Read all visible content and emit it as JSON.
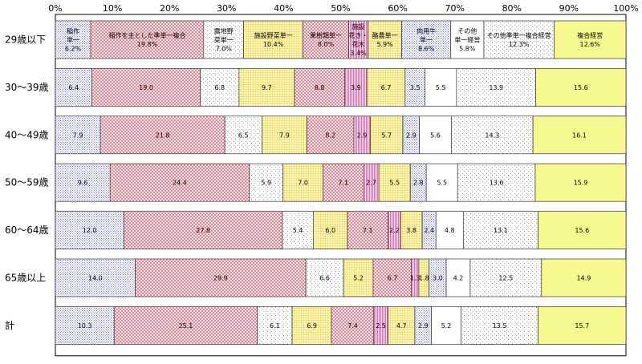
{
  "chart_data": {
    "type": "bar",
    "orientation": "horizontal",
    "stacked": true,
    "percent": true,
    "x_ticks": [
      "0%",
      "10%",
      "20%",
      "30%",
      "40%",
      "50%",
      "60%",
      "70%",
      "80%",
      "90%",
      "100%"
    ],
    "xlim": [
      0,
      100
    ],
    "categories": [
      "29歳以下",
      "30～39歳",
      "40～49歳",
      "50～59歳",
      "60～64歳",
      "65歳以上",
      "計"
    ],
    "series": [
      {
        "name": "稲作単一",
        "label_lines": [
          "稲作",
          "単一"
        ],
        "pattern": "dots",
        "color": "#c8c8ee",
        "values": [
          6.2,
          6.4,
          7.9,
          9.6,
          12.0,
          14.0,
          10.3
        ]
      },
      {
        "name": "稲作を主とした準単一複合",
        "label_lines": [
          "稲作を主とした準単一複合"
        ],
        "pattern": "check",
        "color": "#f0a0a8",
        "values": [
          19.8,
          19.0,
          21.8,
          24.4,
          27.8,
          29.9,
          25.1
        ]
      },
      {
        "name": "露地野菜単一",
        "label_lines": [
          "露地野",
          "菜単一"
        ],
        "pattern": "speck",
        "color": "#e8d8c8",
        "values": [
          7.0,
          6.8,
          6.5,
          5.9,
          5.4,
          6.6,
          6.1
        ]
      },
      {
        "name": "施設野菜単一",
        "label_lines": [
          "施設野菜単一"
        ],
        "pattern": "grid",
        "color": "#f4e060",
        "values": [
          10.4,
          9.7,
          7.9,
          7.0,
          6.0,
          5.2,
          6.9
        ]
      },
      {
        "name": "果樹類単一",
        "label_lines": [
          "果樹類単一"
        ],
        "pattern": "check",
        "color": "#e06878",
        "values": [
          8.0,
          8.8,
          8.2,
          7.1,
          7.1,
          6.7,
          7.4
        ]
      },
      {
        "name": "施設花き・花木",
        "label_lines": [
          "施設",
          "花き・",
          "花木"
        ],
        "pattern": "vlines",
        "color": "#f098c8",
        "values": [
          3.4,
          3.9,
          2.9,
          2.7,
          2.2,
          1.3,
          2.5
        ]
      },
      {
        "name": "酪農単一",
        "label_lines": [
          "酪農単一"
        ],
        "pattern": "grid",
        "color": "#a8d080",
        "values": [
          5.9,
          6.7,
          5.7,
          5.5,
          3.8,
          1.8,
          4.7
        ]
      },
      {
        "name": "肉用牛単一",
        "label_lines": [
          "肉用牛",
          "単一"
        ],
        "pattern": "dots",
        "color": "#88d8a0",
        "values": [
          8.6,
          3.5,
          2.9,
          2.8,
          2.4,
          3.0,
          2.9
        ]
      },
      {
        "name": "その他単一経営",
        "label_lines": [
          "その他",
          "単一経営"
        ],
        "pattern": "none",
        "color": "#ffffff",
        "values": [
          5.8,
          5.5,
          5.6,
          5.5,
          4.8,
          4.2,
          5.2
        ]
      },
      {
        "name": "その他準単一複合経営",
        "label_lines": [
          "その他準単一複合経営"
        ],
        "pattern": "speck",
        "color": "#b4b4b4",
        "values": [
          12.3,
          13.9,
          14.3,
          13.6,
          13.1,
          12.5,
          13.5
        ]
      },
      {
        "name": "複合経営",
        "label_lines": [
          "複合経営"
        ],
        "pattern": "solid",
        "color": "#f8f890",
        "values": [
          12.6,
          15.6,
          16.1,
          15.9,
          15.6,
          14.9,
          15.7
        ]
      }
    ]
  }
}
